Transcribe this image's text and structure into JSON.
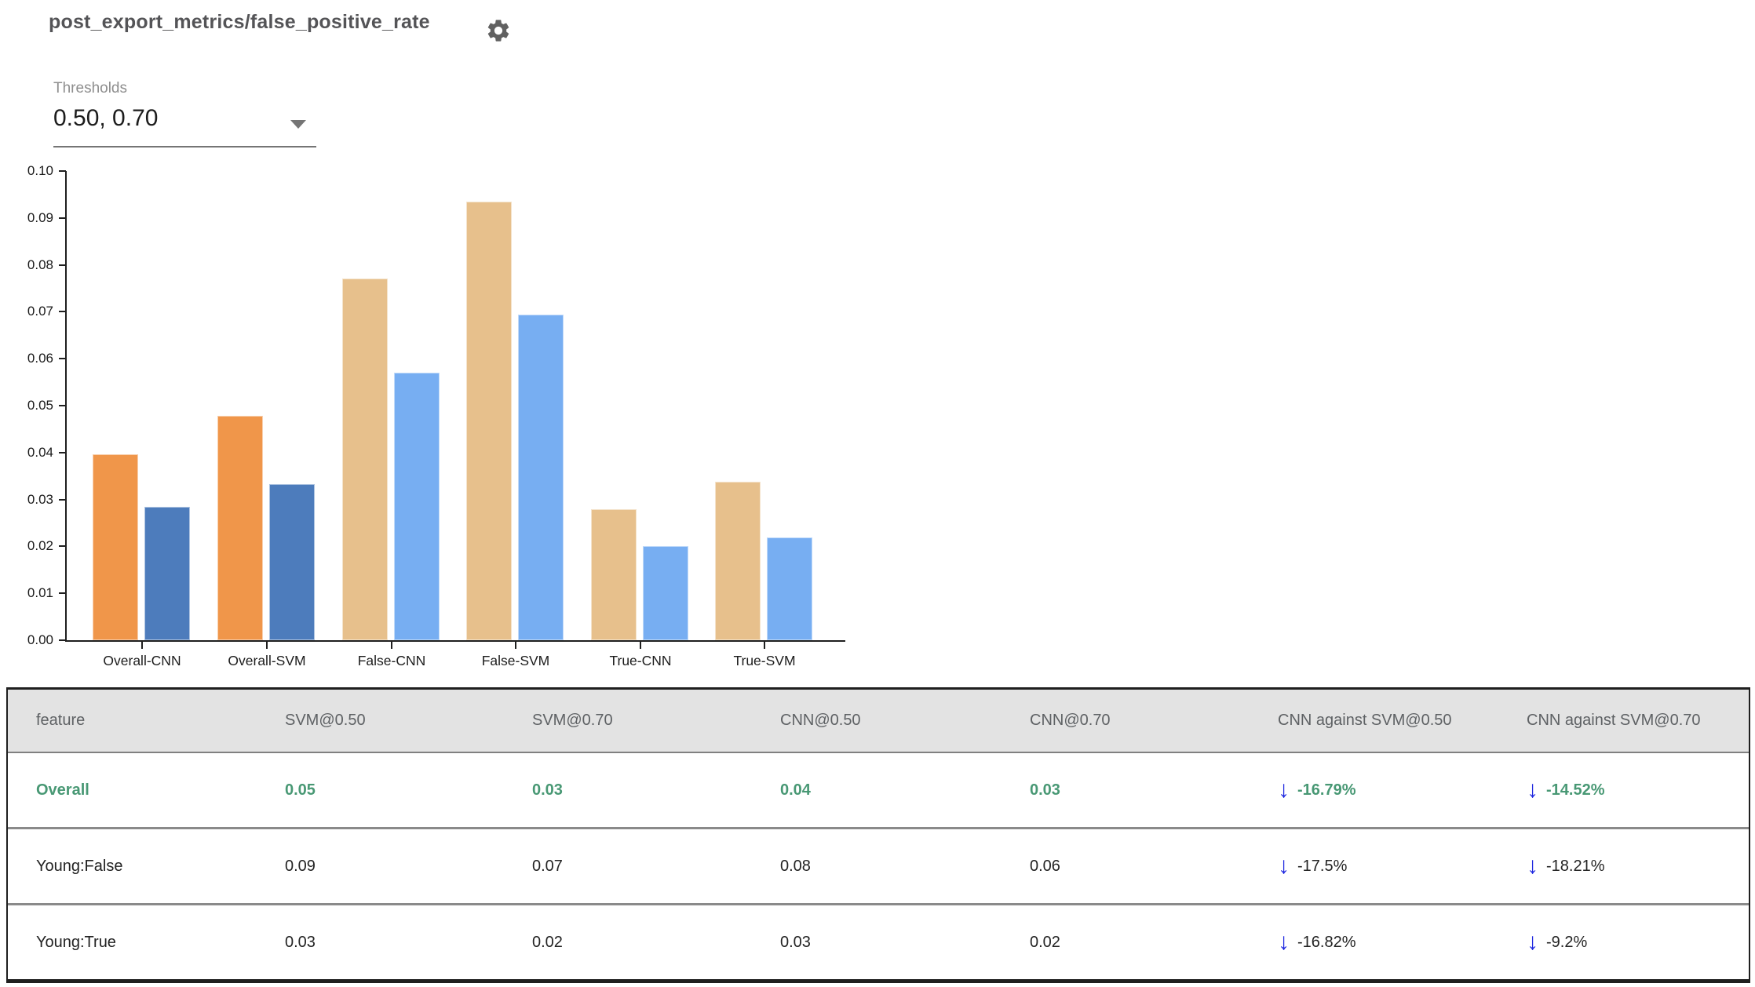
{
  "title": "post_export_metrics/false_positive_rate",
  "icons": {
    "settings": "gear",
    "dropdown_arrow": "▼",
    "decrease_arrow": "↓"
  },
  "thresholds": {
    "label": "Thresholds",
    "value": "0.50, 0.70"
  },
  "colors": {
    "overall_t050": "#F0964A",
    "overall_t070": "#4D7CBC",
    "slice_t050": "#E7C08C",
    "slice_t070": "#77AEF2",
    "highlight_green": "#489874",
    "arrow_blue": "#2029E0",
    "header_bg": "#E3E3E3",
    "header_text": "#5E6164"
  },
  "chart_data": {
    "type": "bar",
    "title": "",
    "xlabel": "",
    "ylabel": "",
    "ylim": [
      0,
      0.1
    ],
    "ytick_step": 0.01,
    "grid": false,
    "legend": "none",
    "series_names": [
      "threshold 0.50",
      "threshold 0.70"
    ],
    "categories": [
      "Overall-CNN",
      "Overall-SVM",
      "False-CNN",
      "False-SVM",
      "True-CNN",
      "True-SVM"
    ],
    "series": [
      {
        "name": "threshold 0.50",
        "values": [
          0.0397,
          0.0478,
          0.0771,
          0.0935,
          0.0279,
          0.0337
        ],
        "colors": [
          "#F0964A",
          "#F0964A",
          "#E7C08C",
          "#E7C08C",
          "#E7C08C",
          "#E7C08C"
        ]
      },
      {
        "name": "threshold 0.70",
        "values": [
          0.0284,
          0.0333,
          0.057,
          0.0694,
          0.02,
          0.0219
        ],
        "colors": [
          "#4D7CBC",
          "#4D7CBC",
          "#77AEF2",
          "#77AEF2",
          "#77AEF2",
          "#77AEF2"
        ]
      }
    ]
  },
  "table": {
    "columns": [
      "feature",
      "SVM@0.50",
      "SVM@0.70",
      "CNN@0.50",
      "CNN@0.70",
      "CNN against SVM@0.50",
      "CNN against SVM@0.70"
    ],
    "rows": [
      {
        "feature": "Overall",
        "values": [
          "0.05",
          "0.03",
          "0.04",
          "0.03"
        ],
        "deltas": [
          "-16.79%",
          "-14.52%"
        ]
      },
      {
        "feature": "Young:False",
        "values": [
          "0.09",
          "0.07",
          "0.08",
          "0.06"
        ],
        "deltas": [
          "-17.5%",
          "-18.21%"
        ]
      },
      {
        "feature": "Young:True",
        "values": [
          "0.03",
          "0.02",
          "0.03",
          "0.02"
        ],
        "deltas": [
          "-16.82%",
          "-9.2%"
        ]
      }
    ]
  }
}
